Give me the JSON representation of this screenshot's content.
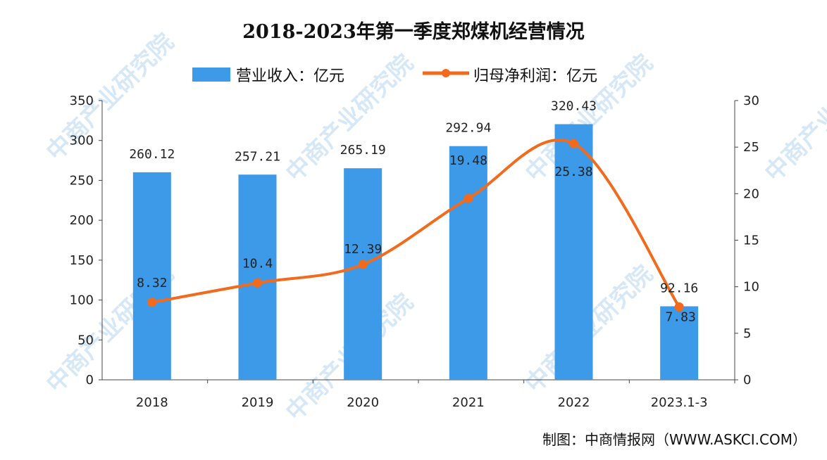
{
  "chart_data": {
    "type": "bar+line",
    "title": "2018-2023年第一季度郑煤机经营情况",
    "categories": [
      "2018",
      "2019",
      "2020",
      "2021",
      "2022",
      "2023.1-3"
    ],
    "series": [
      {
        "name": "营业收入：亿元",
        "type": "bar",
        "axis": "left",
        "color": "#3d9ae8",
        "values": [
          260.12,
          257.21,
          265.19,
          292.94,
          320.43,
          92.16
        ],
        "labels": [
          "260.12",
          "257.21",
          "265.19",
          "292.94",
          "320.43",
          "92.16"
        ]
      },
      {
        "name": "归母净利润：亿元",
        "type": "line",
        "axis": "right",
        "color": "#f26a1b",
        "smooth": true,
        "values": [
          8.32,
          10.4,
          12.39,
          19.48,
          25.38,
          7.83
        ],
        "labels": [
          "8.32",
          "10.4",
          "12.39",
          "19.48",
          "25.38",
          "7.83"
        ]
      }
    ],
    "y_left": {
      "lim": [
        0,
        350
      ],
      "ticks": [
        "0",
        "50",
        "100",
        "150",
        "200",
        "250",
        "300",
        "350"
      ]
    },
    "y_right": {
      "lim": [
        0,
        30
      ],
      "ticks": [
        "0",
        "5",
        "10",
        "15",
        "20",
        "25",
        "30"
      ]
    },
    "grid": false,
    "legend": "top-center"
  },
  "source": "制图：中商情报网（WWW.ASKCI.COM）",
  "watermark": "中商产业研究院"
}
